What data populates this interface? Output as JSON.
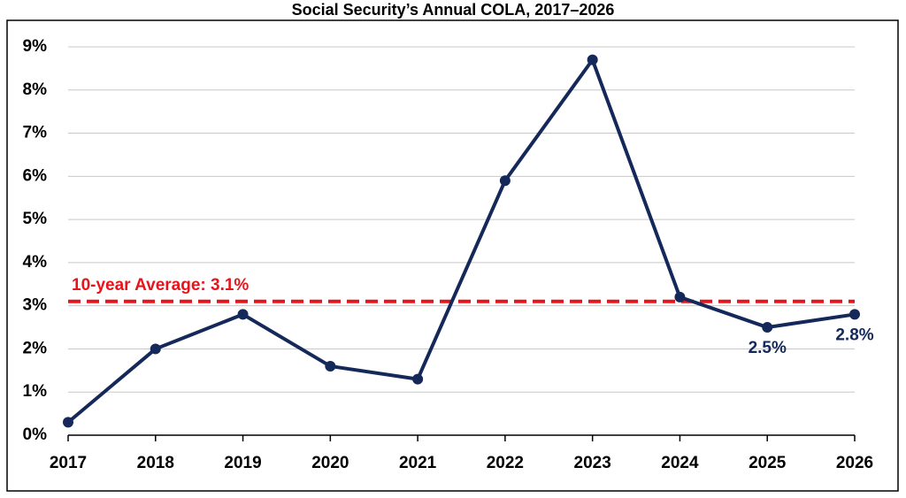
{
  "chart_data": {
    "type": "line",
    "title": "Social Security’s Annual COLA, 2017–2026",
    "x": [
      2017,
      2018,
      2019,
      2020,
      2021,
      2022,
      2023,
      2024,
      2025,
      2026
    ],
    "values": [
      0.3,
      2.0,
      2.8,
      1.6,
      1.3,
      5.9,
      8.7,
      3.2,
      2.5,
      2.8
    ],
    "value_labels": [
      null,
      null,
      null,
      null,
      null,
      null,
      null,
      null,
      "2.5%",
      "2.8%"
    ],
    "color": "#14285a",
    "xlim": [
      2017,
      2026
    ],
    "xticks": [
      2017,
      2018,
      2019,
      2020,
      2021,
      2022,
      2023,
      2024,
      2025,
      2026
    ],
    "ylim": [
      0,
      9
    ],
    "yticks": [
      {
        "value": 0,
        "label": "0%"
      },
      {
        "value": 1,
        "label": "1%"
      },
      {
        "value": 2,
        "label": "2%"
      },
      {
        "value": 3,
        "label": "3%"
      },
      {
        "value": 4,
        "label": "4%"
      },
      {
        "value": 5,
        "label": "5%"
      },
      {
        "value": 6,
        "label": "6%"
      },
      {
        "value": 7,
        "label": "7%"
      },
      {
        "value": 8,
        "label": "8%"
      },
      {
        "value": 9,
        "label": "9%"
      }
    ],
    "grid": true,
    "reference_line": {
      "value": 3.1,
      "label": "10-year Average: 3.1%",
      "color": "#e8141b"
    }
  }
}
